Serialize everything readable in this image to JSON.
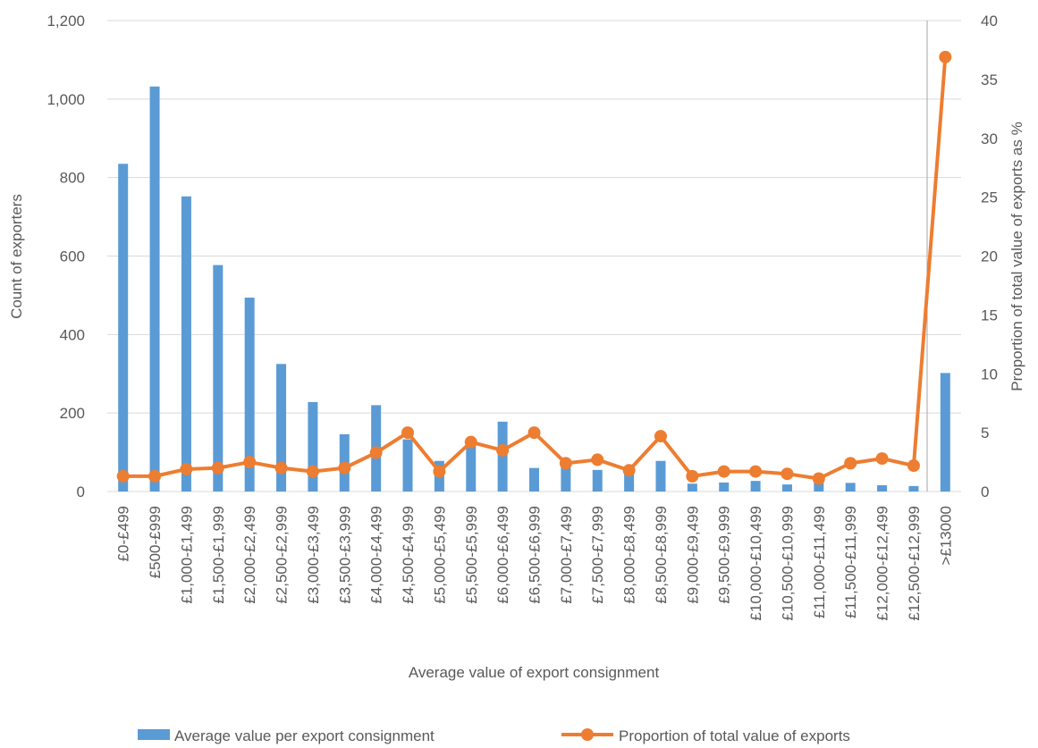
{
  "chart_data": {
    "type": "bar+line",
    "title": "",
    "xlabel": "Average value of export consignment",
    "ylabel": "Count of exporters",
    "y2label": "Proportion of total value of exports as %",
    "ylim": [
      0,
      1200
    ],
    "y2lim": [
      0,
      40
    ],
    "yticks": [
      0,
      200,
      400,
      600,
      800,
      1000,
      1200
    ],
    "ytick_labels": [
      "0",
      "200",
      "400",
      "600",
      "800",
      "1,000",
      "1,200"
    ],
    "y2ticks": [
      0,
      5,
      10,
      15,
      20,
      25,
      30,
      35,
      40
    ],
    "y2tick_labels": [
      "0",
      "5",
      "10",
      "15",
      "20",
      "25",
      "30",
      "35",
      "40"
    ],
    "grid": true,
    "legend_position": "bottom",
    "categories": [
      "£0-£499",
      "£500-£999",
      "£1,000-£1,499",
      "£1,500-£1,999",
      "£2,000-£2,499",
      "£2,500-£2,999",
      "£3,000-£3,499",
      "£3,500-£3,999",
      "£4,000-£4,499",
      "£4,500-£4,999",
      "£5,000-£5,499",
      "£5,500-£5,999",
      "£6,000-£6,499",
      "£6,500-£6,999",
      "£7,000-£7,499",
      "£7,500-£7,999",
      "£8,000-£8,499",
      "£8,500-£8,999",
      "£9,000-£9,499",
      "£9,500-£9,999",
      "£10,000-£10,499",
      "£10,500-£10,999",
      "£11,000-£11,499",
      "£11,500-£11,999",
      "£12,000-£12,499",
      "£12,500-£12,999",
      ">£13000"
    ],
    "series": [
      {
        "name": "Average value per export consignment",
        "type": "bar",
        "axis": "left",
        "color": "#5B9BD5",
        "values": [
          835,
          1032,
          752,
          577,
          494,
          325,
          228,
          146,
          220,
          133,
          78,
          117,
          178,
          60,
          75,
          55,
          58,
          78,
          20,
          23,
          27,
          18,
          33,
          22,
          16,
          14,
          302
        ]
      },
      {
        "name": "Proportion of total value of exports",
        "type": "line",
        "axis": "right",
        "color": "#ED7D31",
        "values": [
          1.3,
          1.3,
          1.9,
          2.0,
          2.5,
          2.0,
          1.7,
          2.0,
          3.3,
          5.0,
          1.7,
          4.2,
          3.5,
          5.0,
          2.4,
          2.7,
          1.8,
          4.7,
          1.3,
          1.7,
          1.7,
          1.5,
          1.1,
          2.4,
          2.8,
          2.2,
          36.9
        ]
      }
    ]
  }
}
